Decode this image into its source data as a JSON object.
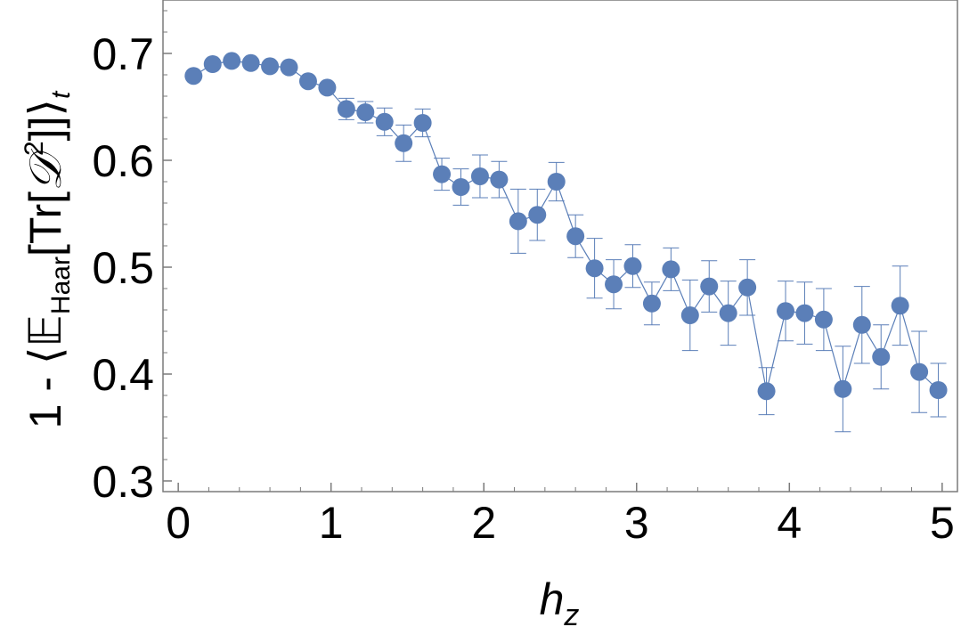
{
  "chart_data": {
    "type": "scatter",
    "title": "",
    "xlabel": "h",
    "xlabel_sub": "z",
    "ylabel": {
      "prefix": "1 - ⟨",
      "expectation": "𝔼",
      "expectation_sub": "Haar",
      "inner": "[Tr[",
      "operator": "𝒟",
      "power": "2",
      "close": "]]⟩",
      "sub": "t"
    },
    "xlim": [
      -0.1,
      5.1
    ],
    "ylim": [
      0.29,
      0.75
    ],
    "xticks": [
      "0",
      "1",
      "2",
      "3",
      "4",
      "5"
    ],
    "yticks": [
      "0.3",
      "0.4",
      "0.5",
      "0.6",
      "0.7"
    ],
    "grid": false,
    "color": "#5b7fb8",
    "series": [
      {
        "x": [
          0.1,
          0.225,
          0.35,
          0.475,
          0.6,
          0.725,
          0.85,
          0.975,
          1.1,
          1.225,
          1.35,
          1.475,
          1.6,
          1.725,
          1.85,
          1.975,
          2.1,
          2.225,
          2.35,
          2.475,
          2.6,
          2.725,
          2.85,
          2.975,
          3.1,
          3.225,
          3.35,
          3.475,
          3.6,
          3.725,
          3.85,
          3.975,
          4.1,
          4.225,
          4.35,
          4.475,
          4.6,
          4.725,
          4.85,
          4.975
        ],
        "y": [
          0.679,
          0.69,
          0.693,
          0.691,
          0.688,
          0.687,
          0.674,
          0.668,
          0.648,
          0.645,
          0.636,
          0.616,
          0.635,
          0.587,
          0.575,
          0.585,
          0.582,
          0.543,
          0.549,
          0.58,
          0.529,
          0.499,
          0.484,
          0.501,
          0.466,
          0.498,
          0.455,
          0.482,
          0.457,
          0.481,
          0.384,
          0.459,
          0.457,
          0.451,
          0.386,
          0.446,
          0.416,
          0.464,
          0.402,
          0.385
        ],
        "error": [
          0.0,
          0.0,
          0.0,
          0.0,
          0.0,
          0.0,
          0.0,
          0.0,
          0.01,
          0.01,
          0.013,
          0.017,
          0.013,
          0.015,
          0.017,
          0.02,
          0.017,
          0.03,
          0.024,
          0.018,
          0.02,
          0.028,
          0.023,
          0.02,
          0.02,
          0.02,
          0.033,
          0.024,
          0.03,
          0.026,
          0.022,
          0.028,
          0.029,
          0.029,
          0.04,
          0.036,
          0.03,
          0.037,
          0.038,
          0.025
        ]
      }
    ]
  }
}
